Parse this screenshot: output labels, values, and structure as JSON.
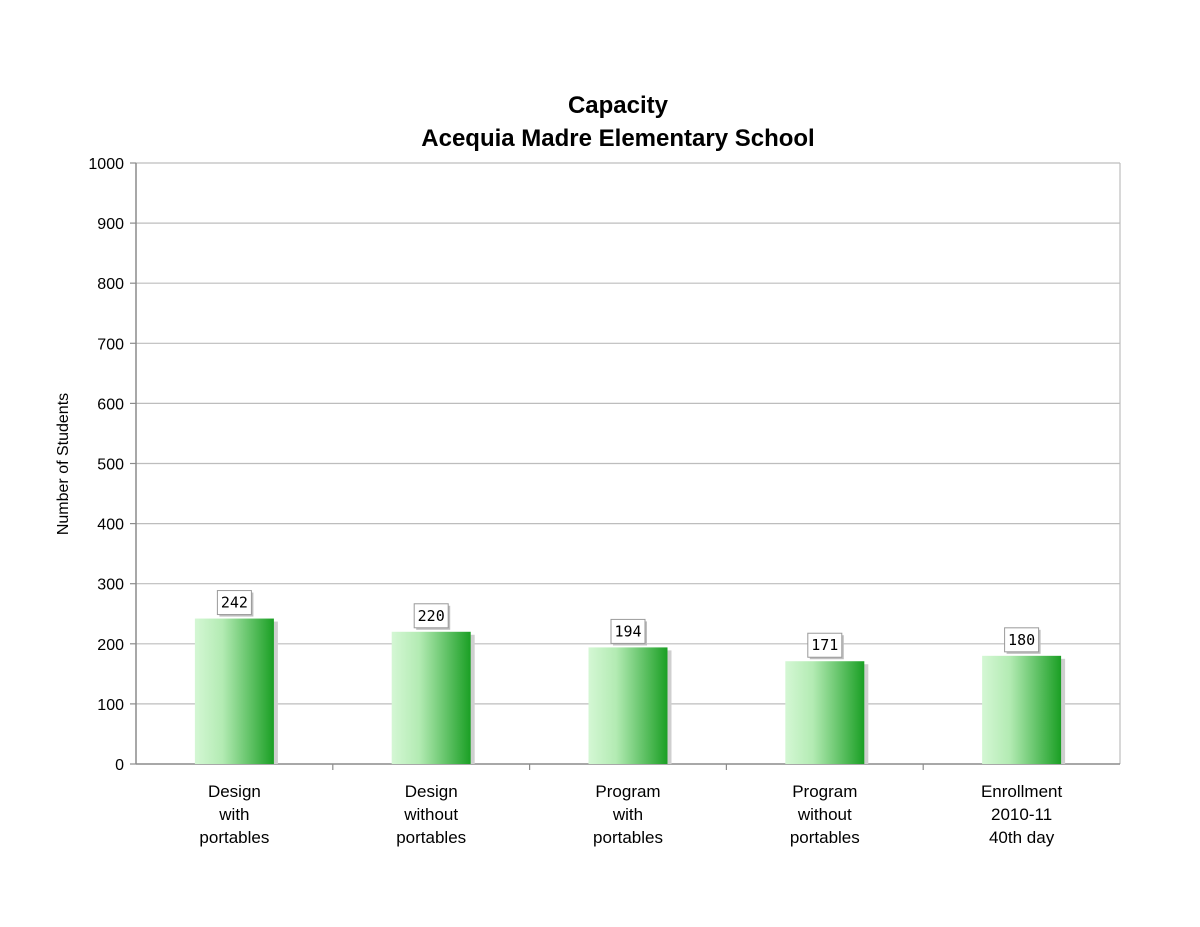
{
  "chart_data": {
    "type": "bar",
    "title": [
      "Capacity",
      "Acequia Madre Elementary School"
    ],
    "ylabel": "Number of Students",
    "xlabel": "",
    "ylim": [
      0,
      1000
    ],
    "yticks": [
      0,
      100,
      200,
      300,
      400,
      500,
      600,
      700,
      800,
      900,
      1000
    ],
    "grid": true,
    "legend": "none",
    "categories": [
      [
        "Design",
        "with",
        "portables"
      ],
      [
        "Design",
        "without",
        "portables"
      ],
      [
        "Program",
        "with",
        "portables"
      ],
      [
        "Program",
        "without",
        "portables"
      ],
      [
        "Enrollment",
        "2010-11",
        "40th day"
      ]
    ],
    "values": [
      242,
      220,
      194,
      171,
      180
    ],
    "data_labels": [
      "242",
      "220",
      "194",
      "171",
      "180"
    ],
    "colors": {
      "bar_light": "#d4f7d4",
      "bar_dark": "#1a9f24",
      "grid": "#bdbdbd",
      "axis": "#8c8c8c"
    }
  }
}
